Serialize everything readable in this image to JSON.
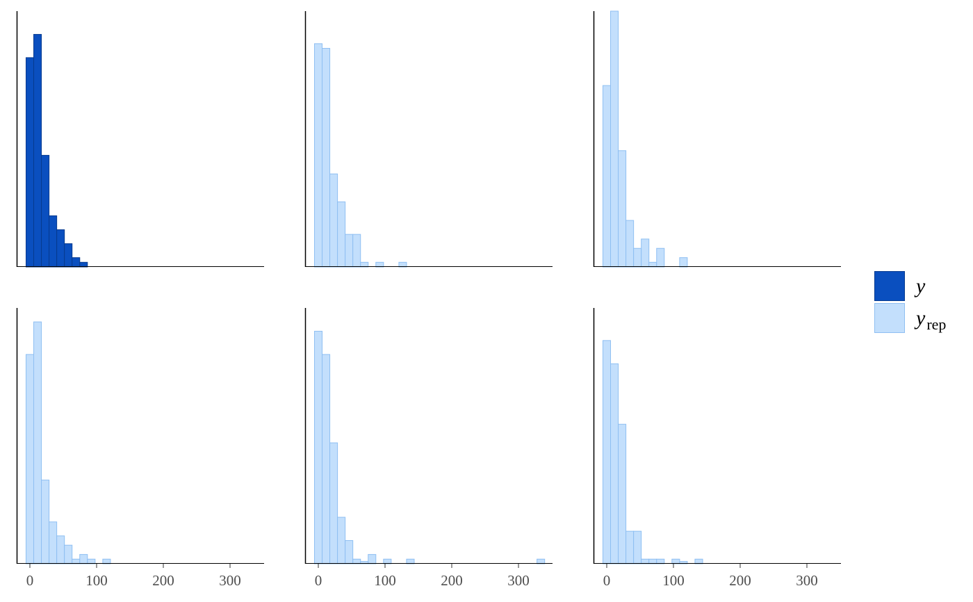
{
  "legend": {
    "y": {
      "label": "y",
      "fill": "#0a4fbf",
      "stroke": "#063a8f"
    },
    "yrep": {
      "label": "y",
      "subscript": "rep",
      "fill": "#c3dffc",
      "stroke": "#8fbff2"
    }
  },
  "chart_data": {
    "type": "bar",
    "layout": "facet-grid 2x3",
    "bin_width": 11.5,
    "bin_centers": [
      0,
      11.5,
      23,
      34.5,
      46,
      57.5,
      69,
      80.5,
      92,
      103.5,
      115,
      126.5,
      138,
      149.5,
      161,
      172.5,
      184,
      195.5,
      207,
      218.5,
      230,
      241.5,
      253,
      264.5,
      276,
      287.5,
      299,
      310.5,
      322,
      333.5
    ],
    "xlim": [
      -20,
      350
    ],
    "x_ticks": [
      0,
      100,
      200,
      300
    ],
    "x_tick_labels": [
      "0",
      "100",
      "200",
      "300"
    ],
    "ylim": [
      0,
      110
    ],
    "grid": false,
    "legend_position": "right",
    "panels": [
      {
        "series": "y",
        "counts": [
          90,
          100,
          48,
          22,
          16,
          10,
          4,
          2,
          0,
          0,
          0,
          0,
          0,
          0,
          0,
          0,
          0,
          0,
          0,
          0,
          0,
          0,
          0,
          0,
          0,
          0,
          0,
          0,
          0,
          0
        ]
      },
      {
        "series": "yrep",
        "counts": [
          96,
          94,
          40,
          28,
          14,
          14,
          2,
          0,
          2,
          0,
          0,
          2,
          0,
          0,
          0,
          0,
          0,
          0,
          0,
          0,
          0,
          0,
          0,
          0,
          0,
          0,
          0,
          0,
          0,
          0
        ]
      },
      {
        "series": "yrep",
        "counts": [
          78,
          110,
          50,
          20,
          8,
          12,
          2,
          8,
          0,
          0,
          4,
          0,
          0,
          0,
          0,
          0,
          0,
          0,
          0,
          0,
          0,
          0,
          0,
          0,
          0,
          0,
          0,
          0,
          0,
          0
        ]
      },
      {
        "series": "yrep",
        "counts": [
          90,
          104,
          36,
          18,
          12,
          8,
          2,
          4,
          2,
          0,
          2,
          0,
          0,
          0,
          0,
          0,
          0,
          0,
          0,
          0,
          0,
          0,
          0,
          0,
          0,
          0,
          0,
          0,
          0,
          0
        ]
      },
      {
        "series": "yrep",
        "counts": [
          100,
          90,
          52,
          20,
          10,
          2,
          1,
          4,
          0,
          2,
          0,
          0,
          2,
          0,
          0,
          0,
          0,
          0,
          0,
          0,
          0,
          0,
          0,
          0,
          0,
          0,
          0,
          0,
          0,
          2
        ]
      },
      {
        "series": "yrep",
        "counts": [
          96,
          86,
          60,
          14,
          14,
          2,
          2,
          2,
          0,
          2,
          1,
          0,
          2,
          0,
          0,
          0,
          0,
          0,
          0,
          0,
          0,
          0,
          0,
          0,
          0,
          0,
          0,
          0,
          0,
          0
        ]
      }
    ]
  }
}
